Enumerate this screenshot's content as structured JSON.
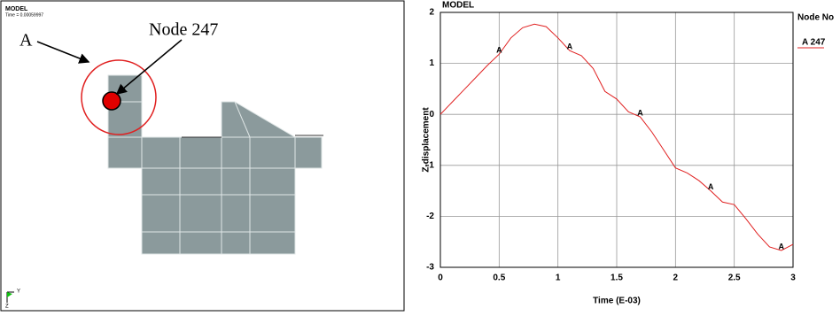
{
  "model_view": {
    "title": "MODEL",
    "time_label": "Time =  0.00059997",
    "annotation": "A",
    "node_label": "Node 247",
    "triad_y": "Y",
    "triad_z": "Z"
  },
  "chart_data": {
    "type": "line",
    "title": "MODEL",
    "x_label": "Time (E-03)",
    "y_label": "Z-displacement",
    "legend_title": "Node No",
    "legend": "right",
    "x": [
      0,
      0.1,
      0.2,
      0.3,
      0.4,
      0.5,
      0.6,
      0.7,
      0.8,
      0.9,
      1.0,
      1.1,
      1.2,
      1.3,
      1.4,
      1.5,
      1.6,
      1.7,
      1.8,
      1.9,
      2.0,
      2.1,
      2.2,
      2.3,
      2.4,
      2.5,
      2.6,
      2.7,
      2.8,
      2.9,
      3.0
    ],
    "series": [
      {
        "name": "A 247",
        "marker": "A",
        "color": "#e02020",
        "values": [
          0,
          0.24,
          0.48,
          0.72,
          0.96,
          1.18,
          1.5,
          1.7,
          1.77,
          1.72,
          1.5,
          1.25,
          1.15,
          0.9,
          0.45,
          0.3,
          0.05,
          -0.05,
          -0.35,
          -0.7,
          -1.05,
          -1.15,
          -1.3,
          -1.5,
          -1.72,
          -1.77,
          -2.05,
          -2.35,
          -2.6,
          -2.67,
          -2.55
        ]
      }
    ],
    "xlim": [
      0,
      3
    ],
    "xticks": [
      0,
      0.5,
      1,
      1.5,
      2,
      2.5,
      3
    ],
    "ylim": [
      -3,
      2
    ],
    "yticks": [
      -3,
      -2,
      -1,
      0,
      1,
      2
    ],
    "grid": true
  }
}
